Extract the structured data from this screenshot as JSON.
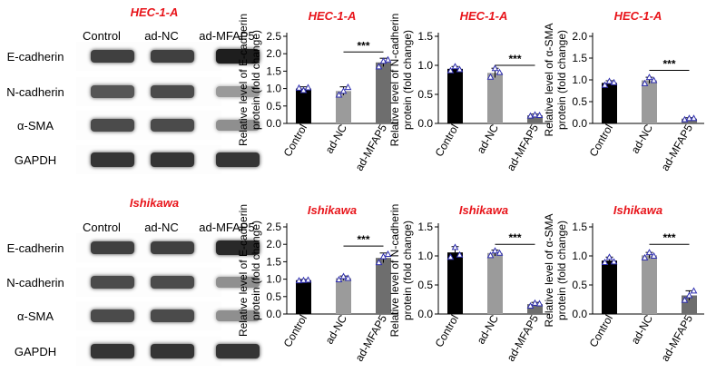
{
  "colors": {
    "title": "#e8151b",
    "control_bar": "#000000",
    "nc_bar": "#9b9b9b",
    "mfap5_bar": "#6e6e6e",
    "point": "#2f2fb0"
  },
  "blots": [
    {
      "title": "HEC-1-A",
      "lanes": [
        "Control",
        "ad-NC",
        "ad-MFAP5"
      ],
      "proteins": [
        {
          "name": "E-cadherin",
          "band_intensity": [
            0.85,
            0.85,
            1.0
          ]
        },
        {
          "name": "N-cadherin",
          "band_intensity": [
            0.75,
            0.8,
            0.45
          ]
        },
        {
          "name": "α-SMA",
          "band_intensity": [
            0.8,
            0.8,
            0.5
          ]
        },
        {
          "name": "GAPDH",
          "band_intensity": [
            0.9,
            0.9,
            0.9
          ]
        }
      ]
    },
    {
      "title": "Ishikawa",
      "lanes": [
        "Control",
        "ad-NC",
        "ad-MFAP5"
      ],
      "proteins": [
        {
          "name": "E-cadherin",
          "band_intensity": [
            0.85,
            0.85,
            0.95
          ]
        },
        {
          "name": "N-cadherin",
          "band_intensity": [
            0.8,
            0.8,
            0.5
          ]
        },
        {
          "name": "α-SMA",
          "band_intensity": [
            0.8,
            0.8,
            0.5
          ]
        },
        {
          "name": "GAPDH",
          "band_intensity": [
            0.9,
            0.9,
            0.9
          ]
        }
      ]
    }
  ],
  "chart_data": [
    {
      "type": "bar",
      "title": "HEC-1-A",
      "ylabel": [
        "Relative level of E-cadherin",
        "protein (fold change)"
      ],
      "categories": [
        "Control",
        "ad-NC",
        "ad-MFAP5"
      ],
      "values": [
        1.0,
        0.93,
        1.75
      ],
      "errors": [
        0.05,
        0.12,
        0.12
      ],
      "points": [
        [
          1.02,
          0.95,
          1.03
        ],
        [
          0.82,
          0.93,
          1.04
        ],
        [
          1.63,
          1.79,
          1.83
        ]
      ],
      "ylim": [
        0,
        2.5
      ],
      "yticks": [
        "0.0",
        "0.5",
        "1.0",
        "1.5",
        "2.0",
        "2.5"
      ],
      "significance": {
        "from": 1,
        "to": 2,
        "label": "***",
        "y": 2.05
      }
    },
    {
      "type": "bar",
      "title": "HEC-1-A",
      "ylabel": [
        "Relative level of N-cadherin",
        "protein (fold change)"
      ],
      "categories": [
        "Control",
        "ad-NC",
        "ad-MFAP5"
      ],
      "values": [
        0.94,
        0.87,
        0.14
      ],
      "errors": [
        0.04,
        0.08,
        0.02
      ],
      "points": [
        [
          0.91,
          0.98,
          0.93
        ],
        [
          0.8,
          0.95,
          0.88
        ],
        [
          0.13,
          0.15,
          0.14
        ]
      ],
      "ylim": [
        0,
        1.5
      ],
      "yticks": [
        "0.0",
        "0.5",
        "1.0",
        "1.5"
      ],
      "significance": {
        "from": 1,
        "to": 2,
        "label": "***",
        "y": 1.0
      }
    },
    {
      "type": "bar",
      "title": "HEC-1-A",
      "ylabel": [
        "Relative level of α-SMA",
        "protein (fold change)"
      ],
      "categories": [
        "Control",
        "ad-NC",
        "ad-MFAP5"
      ],
      "values": [
        0.93,
        0.99,
        0.11
      ],
      "errors": [
        0.05,
        0.07,
        0.02
      ],
      "points": [
        [
          0.88,
          0.97,
          0.94
        ],
        [
          0.92,
          1.06,
          0.99
        ],
        [
          0.09,
          0.12,
          0.12
        ]
      ],
      "ylim": [
        0,
        2.0
      ],
      "yticks": [
        "0.0",
        "0.5",
        "1.0",
        "1.5",
        "2.0"
      ],
      "significance": {
        "from": 1,
        "to": 2,
        "label": "***",
        "y": 1.22
      }
    },
    {
      "type": "bar",
      "title": "Ishikawa",
      "ylabel": [
        "Relative level of E-cadherin",
        "protein (fold change)"
      ],
      "categories": [
        "Control",
        "ad-NC",
        "ad-MFAP5"
      ],
      "values": [
        0.97,
        1.03,
        1.61
      ],
      "errors": [
        0.02,
        0.06,
        0.14
      ],
      "points": [
        [
          0.96,
          0.97,
          0.98
        ],
        [
          0.99,
          1.08,
          1.03
        ],
        [
          1.48,
          1.65,
          1.72
        ]
      ],
      "ylim": [
        0,
        2.5
      ],
      "yticks": [
        "0.0",
        "0.5",
        "1.0",
        "1.5",
        "2.0",
        "2.5"
      ],
      "significance": {
        "from": 1,
        "to": 2,
        "label": "***",
        "y": 1.95
      }
    },
    {
      "type": "bar",
      "title": "Ishikawa",
      "ylabel": [
        "Relative level of N-cadherin",
        "protein (fold change)"
      ],
      "categories": [
        "Control",
        "ad-NC",
        "ad-MFAP5"
      ],
      "values": [
        1.06,
        1.05,
        0.17
      ],
      "errors": [
        0.1,
        0.05,
        0.03
      ],
      "points": [
        [
          0.98,
          1.15,
          1.02
        ],
        [
          1.01,
          1.09,
          1.05
        ],
        [
          0.14,
          0.19,
          0.18
        ]
      ],
      "ylim": [
        0,
        1.5
      ],
      "yticks": [
        "0.0",
        "0.5",
        "1.0",
        "1.5"
      ],
      "significance": {
        "from": 1,
        "to": 2,
        "label": "***",
        "y": 1.2
      }
    },
    {
      "type": "bar",
      "title": "Ishikawa",
      "ylabel": [
        "Relative level of α-SMA",
        "protein (fold change)"
      ],
      "categories": [
        "Control",
        "ad-NC",
        "ad-MFAP5"
      ],
      "values": [
        0.92,
        1.01,
        0.32
      ],
      "errors": [
        0.06,
        0.05,
        0.08
      ],
      "points": [
        [
          0.89,
          0.98,
          0.9
        ],
        [
          0.97,
          1.06,
          1.0
        ],
        [
          0.24,
          0.32,
          0.4
        ]
      ],
      "ylim": [
        0,
        1.5
      ],
      "yticks": [
        "0.0",
        "0.5",
        "1.0",
        "1.5"
      ],
      "significance": {
        "from": 1,
        "to": 2,
        "label": "***",
        "y": 1.2
      }
    }
  ]
}
